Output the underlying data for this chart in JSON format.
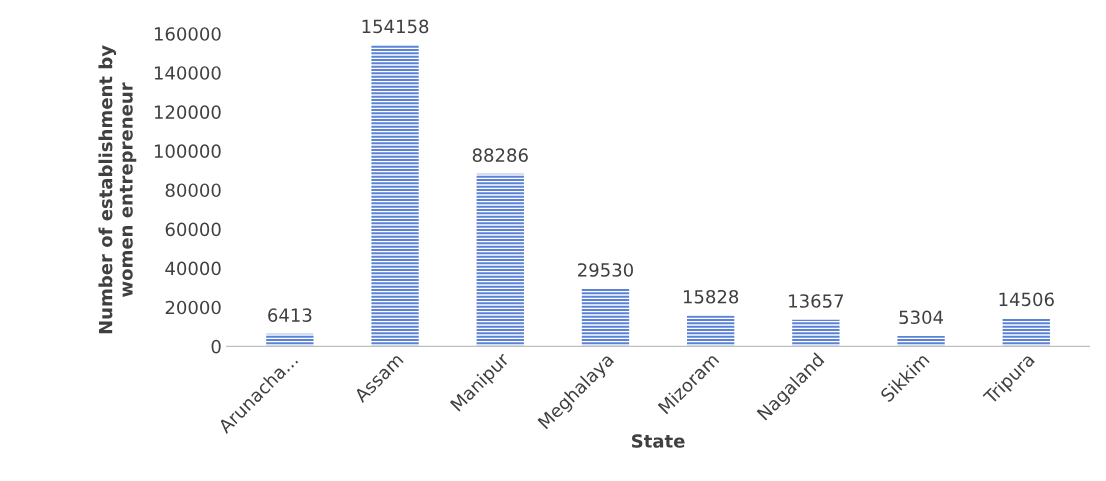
{
  "chart_data": {
    "type": "bar",
    "xlabel": "State",
    "ylabel": "Number of establishment by\nwomen entrepreneur",
    "categories": [
      "Arunacha...",
      "Assam",
      "Manipur",
      "Meghalaya",
      "Mizoram",
      "Nagaland",
      "Sikkim",
      "Tripura"
    ],
    "values": [
      6413,
      154158,
      88286,
      29530,
      15828,
      13657,
      5304,
      14506
    ],
    "color": "#5b82d6",
    "ylim": [
      0,
      160000
    ],
    "yticks": [
      0,
      20000,
      40000,
      60000,
      80000,
      100000,
      120000,
      140000,
      160000
    ],
    "data_labels": true,
    "grid": false,
    "legend": false
  }
}
